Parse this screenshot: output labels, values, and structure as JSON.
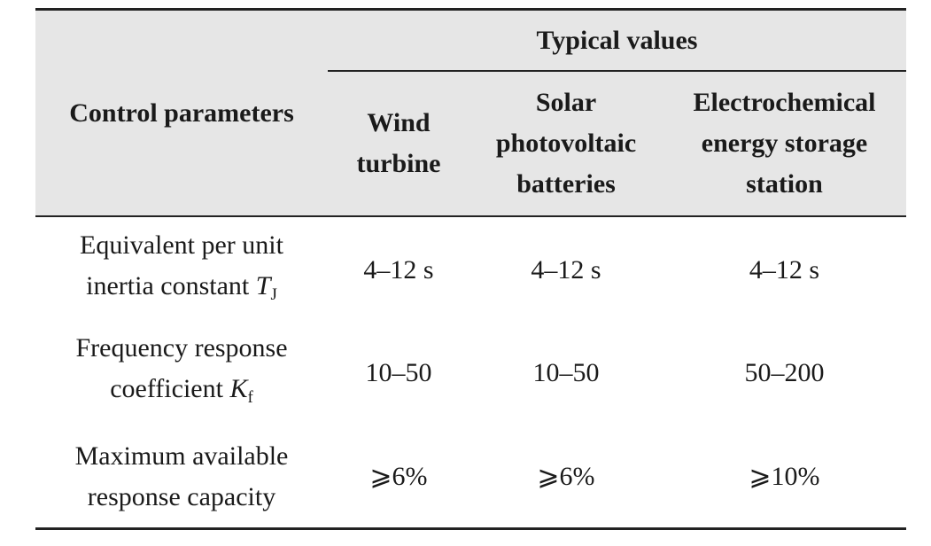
{
  "table": {
    "header": {
      "control_parameters": "Control parameters",
      "typical_values": "Typical values",
      "columns": [
        "Wind turbine",
        "Solar photovoltaic batteries",
        "Electrochemical energy storage station"
      ]
    },
    "rows": [
      {
        "param_text": "Equivalent per unit inertia constant",
        "param_symbol": "T",
        "param_subscript": "J",
        "values": [
          "4–12 s",
          "4–12 s",
          "4–12 s"
        ]
      },
      {
        "param_text": "Frequency response coefficient",
        "param_symbol": "K",
        "param_subscript": "f",
        "values": [
          "10–50",
          "10–50",
          "50–200"
        ]
      },
      {
        "param_text": "Maximum available response capacity",
        "param_symbol": "",
        "param_subscript": "",
        "values": [
          "⩾6%",
          "⩾6%",
          "⩾10%"
        ]
      }
    ]
  }
}
